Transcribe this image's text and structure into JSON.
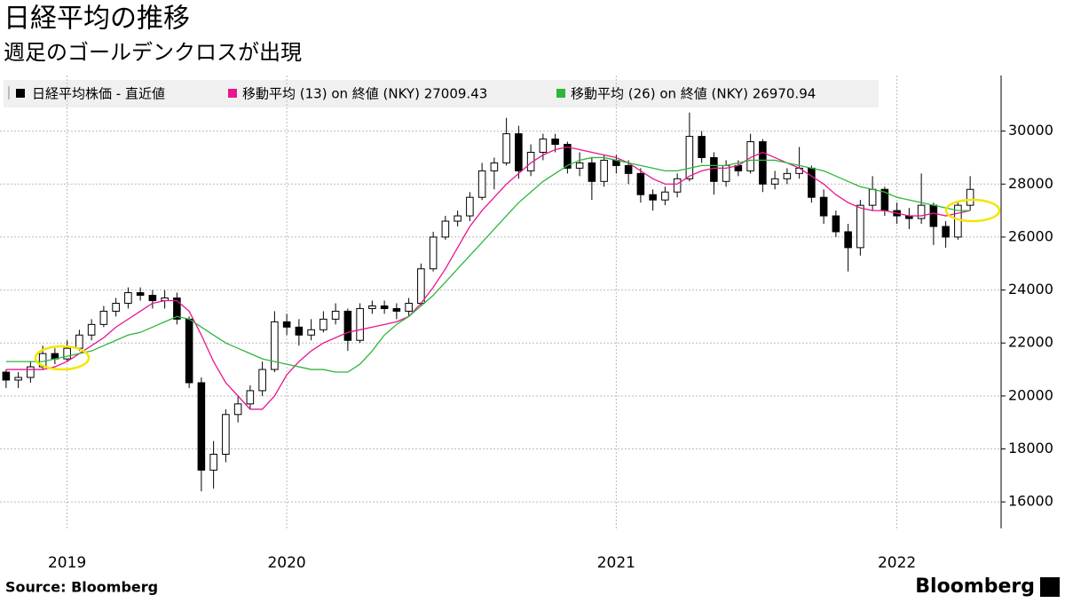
{
  "chart_data": {
    "type": "candlestick",
    "title": "日経平均の推移",
    "subtitle": "週足のゴールデンクロスが出現",
    "source": "Source:  Bloomberg",
    "logo": "Bloomberg",
    "categories": [
      null,
      null,
      null,
      null,
      null,
      "2019",
      null,
      null,
      null,
      null,
      null,
      null,
      null,
      null,
      null,
      null,
      null,
      null,
      null,
      null,
      null,
      null,
      null,
      "2020",
      null,
      null,
      null,
      null,
      null,
      null,
      null,
      null,
      null,
      null,
      null,
      null,
      null,
      null,
      null,
      null,
      null,
      null,
      null,
      null,
      null,
      null,
      null,
      null,
      null,
      null,
      "2021",
      null,
      null,
      null,
      null,
      null,
      null,
      null,
      null,
      null,
      null,
      null,
      null,
      null,
      null,
      null,
      null,
      null,
      null,
      null,
      null,
      null,
      null,
      "2022",
      null,
      null,
      null,
      null,
      null,
      null
    ],
    "ylim": [
      15000,
      32100
    ],
    "yticks": [
      16000,
      18000,
      20000,
      22000,
      24000,
      26000,
      28000,
      30000
    ],
    "grid": true,
    "series": [
      {
        "name": "日経平均株価 - 直近値",
        "color_up": "#ffffff",
        "color_down": "#000000",
        "open": [
          20900,
          20600,
          20700,
          21100,
          21600,
          21400,
          21800,
          22300,
          22700,
          23200,
          23500,
          23900,
          23800,
          23600,
          23700,
          22900,
          20500,
          17200,
          17800,
          19300,
          19700,
          20200,
          21000,
          22800,
          22600,
          22300,
          22500,
          22900,
          23200,
          22100,
          23300,
          23400,
          23300,
          23200,
          23500,
          24800,
          26000,
          26600,
          26800,
          27500,
          28500,
          28800,
          29900,
          28500,
          29200,
          29700,
          29500,
          28600,
          28800,
          28100,
          28900,
          28700,
          28400,
          27600,
          27400,
          27700,
          28200,
          29800,
          29000,
          28100,
          28700,
          28500,
          29600,
          28000,
          28200,
          28400,
          28600,
          27500,
          26800,
          26200,
          25600,
          27200,
          27800,
          27000,
          26800,
          26700,
          27200,
          26400,
          26000,
          27200
        ],
        "high": [
          21000,
          20900,
          21300,
          21900,
          21800,
          22100,
          22500,
          22900,
          23400,
          23700,
          24100,
          24100,
          24000,
          24000,
          23900,
          23000,
          20700,
          18300,
          19500,
          20000,
          20400,
          21300,
          23200,
          23100,
          22900,
          22900,
          23200,
          23500,
          23300,
          23500,
          23600,
          23600,
          23500,
          23700,
          25000,
          26200,
          26800,
          27000,
          27700,
          28800,
          29000,
          30500,
          30200,
          29500,
          29900,
          29900,
          29600,
          29200,
          29000,
          29100,
          29100,
          28900,
          28600,
          27800,
          27900,
          28400,
          30700,
          30000,
          29200,
          28900,
          28900,
          29900,
          29700,
          28500,
          28600,
          29400,
          28700,
          27800,
          27000,
          26500,
          27400,
          28300,
          27900,
          27300,
          27100,
          28400,
          27300,
          26600,
          27300,
          28300
        ],
        "low": [
          20300,
          20300,
          20500,
          21000,
          21200,
          21300,
          21700,
          22100,
          22600,
          23000,
          23300,
          23600,
          23300,
          23300,
          22700,
          20300,
          16400,
          16500,
          17500,
          19000,
          19500,
          20000,
          20900,
          22300,
          21900,
          22100,
          22400,
          22700,
          21700,
          22000,
          23100,
          23100,
          22900,
          23000,
          23400,
          24700,
          25900,
          26400,
          26600,
          27400,
          27800,
          28700,
          28200,
          28300,
          28900,
          29200,
          28400,
          28300,
          27400,
          27900,
          28400,
          28000,
          27300,
          27000,
          27200,
          27500,
          28100,
          28800,
          27600,
          27900,
          28300,
          28400,
          27700,
          27800,
          28000,
          28200,
          27300,
          26500,
          26000,
          24700,
          25300,
          27000,
          26800,
          26500,
          26300,
          26500,
          25700,
          25600,
          25900,
          27000
        ],
        "close": [
          20600,
          20700,
          21100,
          21600,
          21400,
          21800,
          22300,
          22700,
          23200,
          23500,
          23900,
          23800,
          23600,
          23700,
          22900,
          20500,
          17200,
          17800,
          19300,
          19700,
          20200,
          21000,
          22800,
          22600,
          22300,
          22500,
          22900,
          23200,
          22100,
          23300,
          23400,
          23300,
          23200,
          23500,
          24800,
          26000,
          26600,
          26800,
          27500,
          28500,
          28800,
          29900,
          28500,
          29200,
          29700,
          29500,
          28600,
          28800,
          28100,
          28900,
          28700,
          28400,
          27600,
          27400,
          27700,
          28200,
          29800,
          29000,
          28100,
          28700,
          28500,
          29600,
          28000,
          28200,
          28400,
          28600,
          27500,
          26800,
          26200,
          25600,
          27200,
          27800,
          27000,
          26800,
          26700,
          27200,
          26400,
          26000,
          27200,
          27800
        ]
      },
      {
        "name": "移動平均 (13)  on 終値 (NKY) 27009.43",
        "color": "#e8168f",
        "values": [
          21000,
          21000,
          21000,
          21000,
          21100,
          21300,
          21600,
          21900,
          22200,
          22600,
          22900,
          23200,
          23500,
          23600,
          23600,
          23200,
          22300,
          21300,
          20500,
          20000,
          19500,
          19500,
          20000,
          20800,
          21300,
          21700,
          22000,
          22200,
          22400,
          22500,
          22600,
          22700,
          22800,
          23000,
          23500,
          24100,
          24800,
          25600,
          26400,
          27000,
          27500,
          28000,
          28400,
          28800,
          29100,
          29300,
          29400,
          29300,
          29200,
          29100,
          29000,
          28800,
          28500,
          28200,
          28000,
          28000,
          28300,
          28500,
          28600,
          28600,
          28700,
          29000,
          29200,
          29000,
          28800,
          28600,
          28300,
          28000,
          27600,
          27300,
          27100,
          27000,
          27000,
          26900,
          26800,
          26800,
          26900,
          26800,
          26900,
          27000
        ]
      },
      {
        "name": "移動平均 (26)  on 終値 (NKY) 26970.94",
        "color": "#2cb73c",
        "values": [
          21300,
          21300,
          21300,
          21300,
          21400,
          21500,
          21600,
          21700,
          21900,
          22100,
          22300,
          22400,
          22600,
          22800,
          23000,
          22900,
          22600,
          22300,
          22000,
          21800,
          21600,
          21400,
          21300,
          21200,
          21100,
          21000,
          21000,
          20900,
          20900,
          21200,
          21700,
          22300,
          22700,
          23000,
          23400,
          23800,
          24300,
          24800,
          25300,
          25800,
          26300,
          26800,
          27300,
          27700,
          28100,
          28400,
          28700,
          28900,
          29000,
          29000,
          28900,
          28800,
          28700,
          28600,
          28500,
          28500,
          28600,
          28700,
          28700,
          28700,
          28800,
          28900,
          28900,
          28900,
          28800,
          28700,
          28600,
          28500,
          28300,
          28100,
          27900,
          27800,
          27700,
          27500,
          27400,
          27300,
          27200,
          27100,
          27000,
          27000
        ]
      }
    ]
  }
}
